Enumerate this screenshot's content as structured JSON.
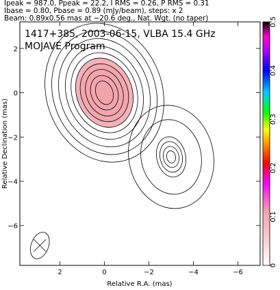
{
  "header": {
    "line1": "Ipeak = 987.0, Ppeak = 22.2, I RMS = 0.26, P RMS = 0.31",
    "line2": "Ibase = 0.80, Pbase = 0.89 (mJy/beam), steps: x 2",
    "line3": "Beam: 0.89x0.56 mas at −20.6 deg., Nat. Wgt. (no taper)"
  },
  "chart_data": {
    "type": "contour",
    "title": "1417+385, 2003-06-15, VLBA 15.4 GHz",
    "subtitle": "MOJAVE Program",
    "xlabel": "Relative R.A. (mas)",
    "ylabel": "Relative Declination (mas)",
    "xlim": [
      3.8,
      -7.0
    ],
    "ylim": [
      -7.8,
      3.2
    ],
    "x_ticks": [
      2,
      0,
      -2,
      -4,
      -6
    ],
    "y_ticks": [
      2,
      0,
      -2,
      -4,
      -6
    ],
    "x_tick_labels": [
      "2",
      "0",
      "−2",
      "−4",
      "−6"
    ],
    "y_tick_labels": [
      "2",
      "0",
      "−2",
      "−4",
      "−6"
    ],
    "colorbar": {
      "range": [
        0,
        0.5
      ],
      "ticks": [
        0,
        0.1,
        0.2,
        0.3,
        0.4,
        0.5
      ],
      "tick_labels": [
        "0",
        "0.1",
        "0.2",
        "0.3",
        "0.4",
        "0.5"
      ],
      "colors": [
        "#ffffff",
        "#f2a4ad",
        "#ff00ff",
        "#ff0000",
        "#ff9900",
        "#ffff00",
        "#00ff00",
        "#00ccff",
        "#0000ff",
        "#aa00ff",
        "#ff00cc",
        "#000000"
      ]
    },
    "components": [
      {
        "name": "core",
        "x": 0.0,
        "y": 0.0,
        "levels_rx": [
          0.38,
          0.6,
          0.82,
          1.05,
          1.25,
          1.45,
          1.7,
          2.0,
          2.3,
          2.6
        ],
        "levels_ry": [
          0.55,
          0.8,
          1.08,
          1.34,
          1.6,
          1.85,
          2.15,
          2.5,
          2.85,
          3.2
        ],
        "angle": -20
      },
      {
        "name": "jet",
        "x": -3.0,
        "y": -2.9,
        "levels_rx": [
          0.2,
          0.35,
          0.5,
          0.65,
          1.35,
          1.9
        ],
        "levels_ry": [
          0.28,
          0.48,
          0.7,
          0.92,
          1.7,
          2.35
        ],
        "angle": -12
      }
    ],
    "beam": {
      "major": 0.89,
      "minor": 0.56,
      "pa_deg": -20.6,
      "x": 2.9,
      "y": -6.9
    }
  }
}
